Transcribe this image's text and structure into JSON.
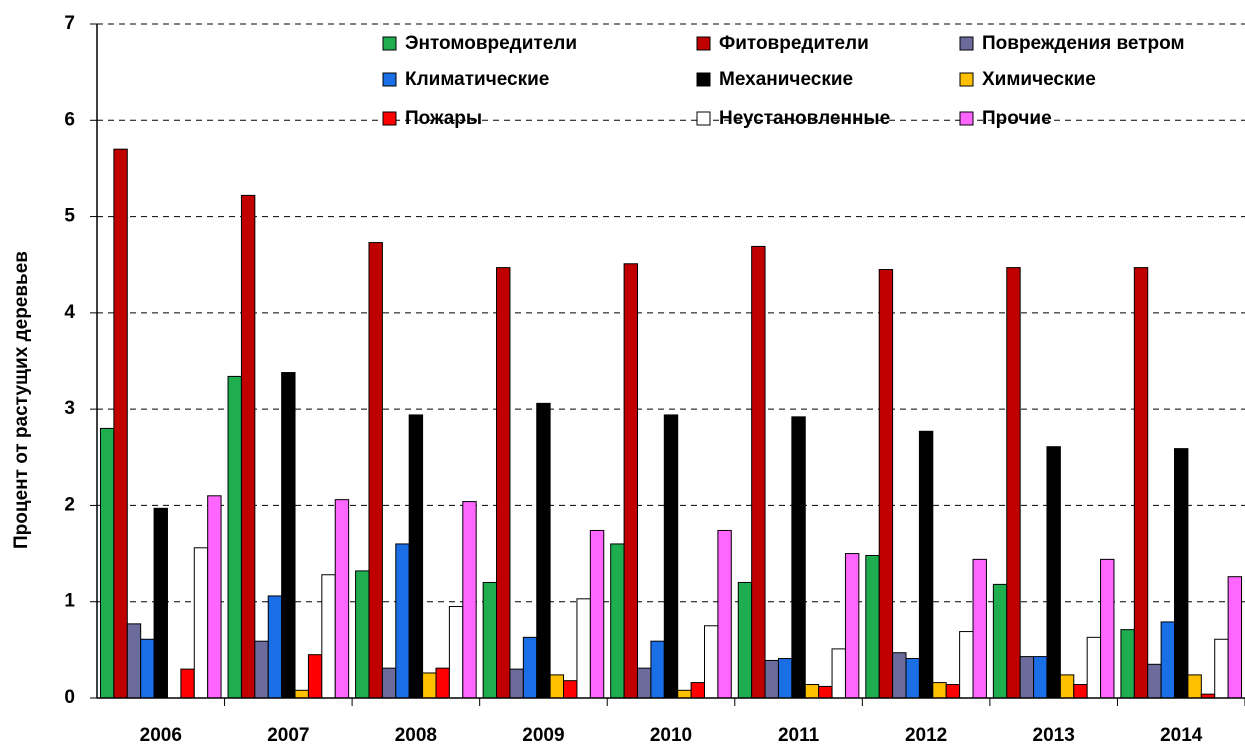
{
  "chart_data": {
    "type": "bar",
    "y_label": "Процент от растущих деревьев",
    "categories": [
      "2006",
      "2007",
      "2008",
      "2009",
      "2010",
      "2011",
      "2012",
      "2013",
      "2014"
    ],
    "series": [
      {
        "name": "Энтомовредители",
        "color": "#1fae4f",
        "values": [
          2.8,
          3.34,
          1.32,
          1.2,
          1.6,
          1.2,
          1.48,
          1.18,
          0.71
        ]
      },
      {
        "name": "Фитовредители",
        "color": "#c00000",
        "values": [
          5.7,
          5.22,
          4.73,
          4.47,
          4.51,
          4.69,
          4.45,
          4.47,
          4.47
        ]
      },
      {
        "name": "Повреждения ветром",
        "color": "#6b6b9c",
        "values": [
          0.77,
          0.59,
          0.31,
          0.3,
          0.31,
          0.39,
          0.47,
          0.43,
          0.35
        ]
      },
      {
        "name": "Климатические",
        "color": "#1a6ee6",
        "values": [
          0.61,
          1.06,
          1.6,
          0.63,
          0.59,
          0.41,
          0.41,
          0.43,
          0.79
        ]
      },
      {
        "name": "Механические",
        "color": "#000000",
        "values": [
          1.97,
          3.38,
          2.94,
          3.06,
          2.94,
          2.92,
          2.77,
          2.61,
          2.59
        ]
      },
      {
        "name": "Химические",
        "color": "#ffc000",
        "values": [
          0,
          0.08,
          0.26,
          0.24,
          0.08,
          0.14,
          0.16,
          0.24,
          0.24
        ]
      },
      {
        "name": "Пожары",
        "color": "#ff0000",
        "values": [
          0.3,
          0.45,
          0.31,
          0.18,
          0.16,
          0.12,
          0.14,
          0.14,
          0.04
        ]
      },
      {
        "name": "Неустановленные",
        "color": "#ffffff",
        "values": [
          1.56,
          1.28,
          0.95,
          1.03,
          0.75,
          0.51,
          0.69,
          0.63,
          0.61
        ]
      },
      {
        "name": "Прочие",
        "color": "#ff66ff",
        "values": [
          2.1,
          2.06,
          2.04,
          1.74,
          1.74,
          1.5,
          1.44,
          1.44,
          1.26
        ]
      }
    ],
    "ylim": [
      0,
      7
    ],
    "yticks": [
      0,
      1,
      2,
      3,
      4,
      5,
      6,
      7
    ],
    "grid": true
  }
}
